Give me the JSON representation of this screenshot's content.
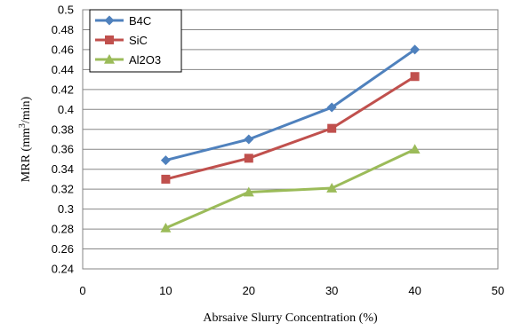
{
  "chart_data": {
    "type": "line",
    "xlabel": "Abrsaive Slurry Concentration (%)",
    "ylabel_parts": [
      "MRR (mm",
      "3",
      "/min)"
    ],
    "xlim": [
      0,
      50
    ],
    "ylim": [
      0.24,
      0.5
    ],
    "xticks": [
      0,
      10,
      20,
      30,
      40,
      50
    ],
    "yticks": [
      0.24,
      0.26,
      0.28,
      0.3,
      0.32,
      0.34,
      0.36,
      0.38,
      0.4,
      0.42,
      0.44,
      0.46,
      0.48,
      0.5
    ],
    "x": [
      10,
      20,
      30,
      40
    ],
    "grid": "horizontal",
    "legend": "top-left",
    "series": [
      {
        "name": "B4C",
        "color": "#4F81BD",
        "marker": "diamond",
        "values": [
          0.349,
          0.37,
          0.402,
          0.46
        ]
      },
      {
        "name": "SiC",
        "color": "#C0504D",
        "marker": "square",
        "values": [
          0.33,
          0.351,
          0.381,
          0.433
        ]
      },
      {
        "name": "Al2O3",
        "color": "#9BBB59",
        "marker": "triangle",
        "values": [
          0.281,
          0.317,
          0.321,
          0.36
        ]
      }
    ]
  }
}
